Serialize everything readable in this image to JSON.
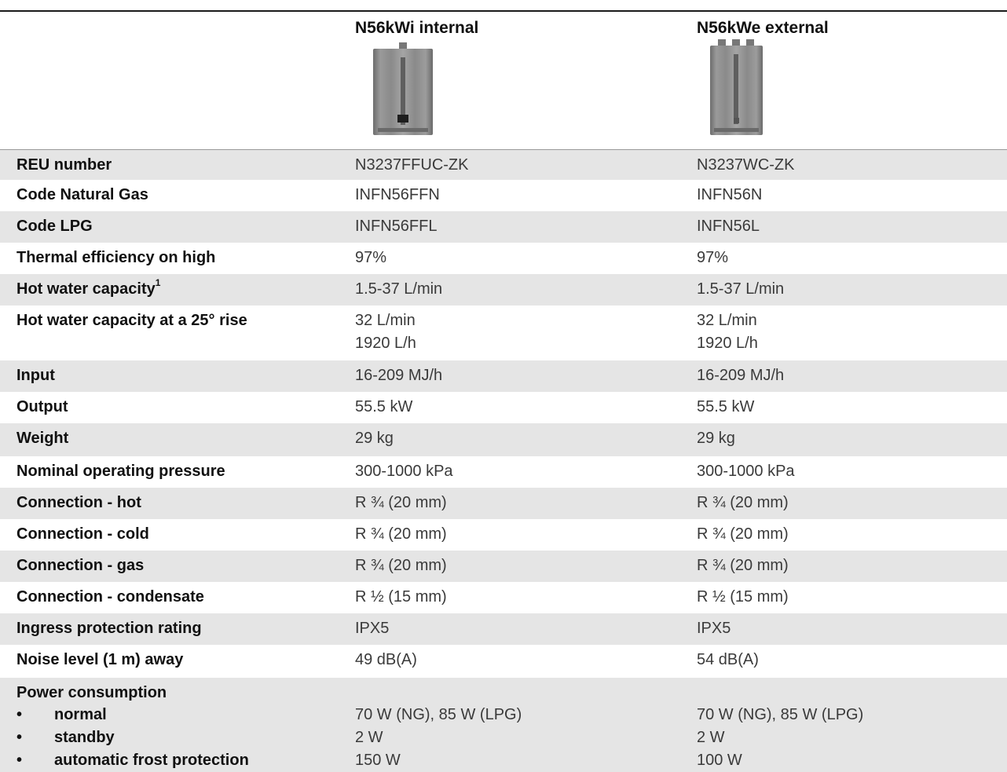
{
  "header": {
    "col1": "N56kWi internal",
    "col2": "N56kWe external"
  },
  "images": {
    "col1_icon": "water-heater-internal-image",
    "col2_icon": "water-heater-external-image"
  },
  "rows": [
    {
      "label": "REU number",
      "v1": "N3237FFUC-ZK",
      "v2": "N3237WC-ZK"
    },
    {
      "label": "Code Natural Gas",
      "v1": "INFN56FFN",
      "v2": "INFN56N"
    },
    {
      "label": "Code LPG",
      "v1": "INFN56FFL",
      "v2": "INFN56L"
    },
    {
      "label": "Thermal efficiency on high",
      "v1": "97%",
      "v2": "97%"
    },
    {
      "label": "Hot water capacity",
      "sup": "1",
      "v1": "1.5-37 L/min",
      "v2": "1.5-37 L/min"
    },
    {
      "label": "Hot water capacity at a 25° rise",
      "v1": "32 L/min",
      "v1b": "1920 L/h",
      "v2": "32 L/min",
      "v2b": "1920 L/h"
    },
    {
      "label": "Input",
      "v1": "16-209 MJ/h",
      "v2": "16-209 MJ/h"
    },
    {
      "label": "Output",
      "v1": "55.5 kW",
      "v2": "55.5 kW"
    },
    {
      "label": "Weight",
      "v1": "29 kg",
      "v2": "29 kg"
    },
    {
      "label": "Nominal operating pressure",
      "v1": "300-1000 kPa",
      "v2": "300-1000 kPa"
    },
    {
      "label": "Connection - hot",
      "v1": "R ¾ (20 mm)",
      "v2": "R ¾ (20 mm)"
    },
    {
      "label": "Connection - cold",
      "v1": "R ¾ (20 mm)",
      "v2": "R ¾ (20 mm)"
    },
    {
      "label": "Connection - gas",
      "v1": "R ¾ (20 mm)",
      "v2": "R ¾ (20 mm)"
    },
    {
      "label": "Connection - condensate",
      "v1": "R ½ (15 mm)",
      "v2": "R ½ (15 mm)"
    },
    {
      "label": "Ingress protection rating",
      "v1": "IPX5",
      "v2": "IPX5"
    },
    {
      "label": "Noise level (1 m) away",
      "v1": "49 dB(A)",
      "v2": "54 dB(A)"
    }
  ],
  "power": {
    "label": "Power consumption",
    "bullet": "•",
    "items": [
      {
        "label": "normal",
        "v1": "70 W (NG), 85 W (LPG)",
        "v2": "70 W (NG), 85 W (LPG)"
      },
      {
        "label": "standby",
        "v1": "2 W",
        "v2": "2 W"
      },
      {
        "label": "automatic frost protection",
        "v1": "150 W",
        "v2": "100 W"
      }
    ]
  },
  "colors": {
    "shade": "#e5e5e5",
    "rule": "#1a1a1a"
  }
}
